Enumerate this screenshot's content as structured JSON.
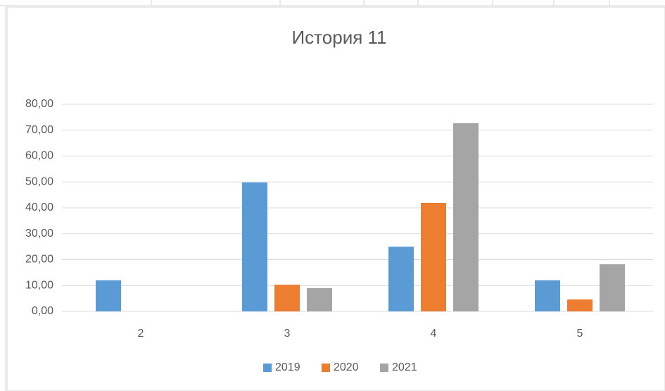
{
  "chart_data": {
    "type": "bar",
    "title": "История 11",
    "categories": [
      "2",
      "3",
      "4",
      "5"
    ],
    "series": [
      {
        "name": "2019",
        "color": "#5b9bd5",
        "values": [
          12,
          49.8,
          25,
          12
        ]
      },
      {
        "name": "2020",
        "color": "#ed7d31",
        "values": [
          0,
          10.3,
          41.9,
          4.6
        ]
      },
      {
        "name": "2021",
        "color": "#a5a5a5",
        "values": [
          0,
          9,
          72.7,
          18.2
        ]
      }
    ],
    "ylim": [
      0,
      80
    ],
    "yticks": [
      {
        "value": 0,
        "label": "0,00"
      },
      {
        "value": 10,
        "label": "10,00"
      },
      {
        "value": 20,
        "label": "20,00"
      },
      {
        "value": 30,
        "label": "30,00"
      },
      {
        "value": 40,
        "label": "40,00"
      },
      {
        "value": 50,
        "label": "50,00"
      },
      {
        "value": 60,
        "label": "60,00"
      },
      {
        "value": 70,
        "label": "70,00"
      },
      {
        "value": 80,
        "label": "80,00"
      }
    ],
    "grid": true,
    "legend": "bottom"
  }
}
